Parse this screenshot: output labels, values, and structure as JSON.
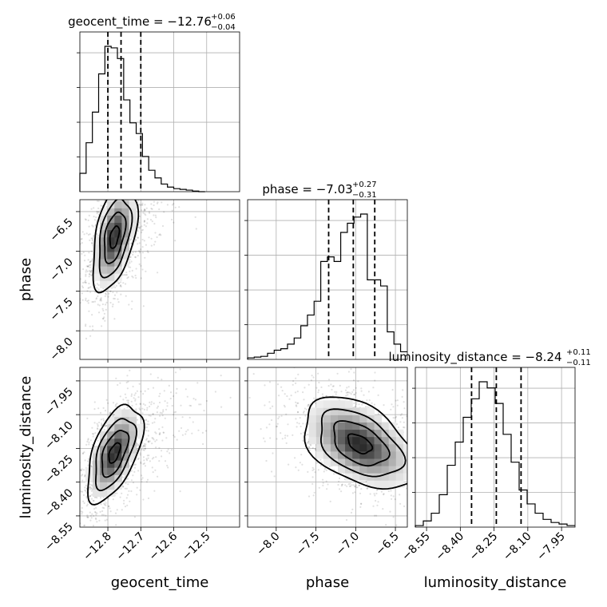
{
  "chart_data": {
    "type": "corner",
    "parameters": [
      {
        "name": "geocent_time",
        "median": -12.76,
        "plus": "+0.06",
        "minus": "−0.04",
        "title_main": "geocent_time = −12.76",
        "range": [
          -12.885,
          -12.4
        ],
        "ticks": [
          -12.8,
          -12.7,
          -12.6,
          -12.5
        ],
        "tick_labels": [
          "−12.8",
          "−12.7",
          "−12.6",
          "−12.5"
        ],
        "quantiles": [
          -12.8,
          -12.76,
          -12.7
        ],
        "hist_edges_start": -12.885,
        "hist_bin_width": 0.019,
        "hist_counts": [
          0.12,
          0.32,
          0.52,
          0.77,
          0.95,
          0.94,
          0.87,
          0.6,
          0.45,
          0.38,
          0.23,
          0.14,
          0.09,
          0.05,
          0.03,
          0.02,
          0.015,
          0.01,
          0.004,
          0.0
        ]
      },
      {
        "name": "phase",
        "median": -7.03,
        "plus": "+0.27",
        "minus": "−0.31",
        "title_main": "phase = −7.03",
        "range": [
          -8.36,
          -6.35
        ],
        "ticks": [
          -8.0,
          -7.5,
          -7.0,
          -6.5
        ],
        "tick_labels": [
          "−8.0",
          "−7.5",
          "−7.0",
          "−6.5"
        ],
        "quantiles": [
          -7.34,
          -7.03,
          -6.76
        ],
        "hist_edges_start": -8.36,
        "hist_bin_width": 0.0837,
        "hist_counts": [
          0.01,
          0.015,
          0.02,
          0.04,
          0.06,
          0.07,
          0.1,
          0.14,
          0.22,
          0.29,
          0.38,
          0.64,
          0.67,
          0.64,
          0.83,
          0.89,
          0.93,
          0.95,
          0.52,
          0.52,
          0.48,
          0.18,
          0.1,
          0.05
        ]
      },
      {
        "name": "luminosity_distance",
        "median": -8.24,
        "plus": "+0.11",
        "minus": "−0.11",
        "title_main": "luminosity_distance = −8.24",
        "range": [
          -8.6,
          -7.89
        ],
        "ticks": [
          -8.55,
          -8.4,
          -8.25,
          -8.1,
          -7.95
        ],
        "tick_labels": [
          "−8.55",
          "−8.40",
          "−8.25",
          "−8.10",
          "−7.95"
        ],
        "quantiles": [
          -8.35,
          -8.24,
          -8.13
        ],
        "hist_edges_start": -8.6,
        "hist_bin_width": 0.0355,
        "hist_counts": [
          0.01,
          0.04,
          0.09,
          0.21,
          0.4,
          0.55,
          0.71,
          0.83,
          0.94,
          0.9,
          0.8,
          0.6,
          0.42,
          0.24,
          0.15,
          0.09,
          0.05,
          0.03,
          0.02,
          0.01
        ]
      }
    ],
    "pairs": [
      {
        "x": "geocent_time",
        "y": "phase",
        "peak": [
          -12.78,
          -6.82
        ],
        "sx": 0.028,
        "sy": 0.28,
        "rho": 0.45
      },
      {
        "x": "geocent_time",
        "y": "luminosity_distance",
        "peak": [
          -12.78,
          -8.27
        ],
        "sx": 0.035,
        "sy": 0.09,
        "rho": 0.55
      },
      {
        "x": "phase",
        "y": "luminosity_distance",
        "peak": [
          -6.95,
          -8.23
        ],
        "sx": 0.3,
        "sy": 0.085,
        "rho": -0.45
      }
    ],
    "density_style": "grayscale 2D histogram with contour levels and scatter points",
    "grid": true
  }
}
